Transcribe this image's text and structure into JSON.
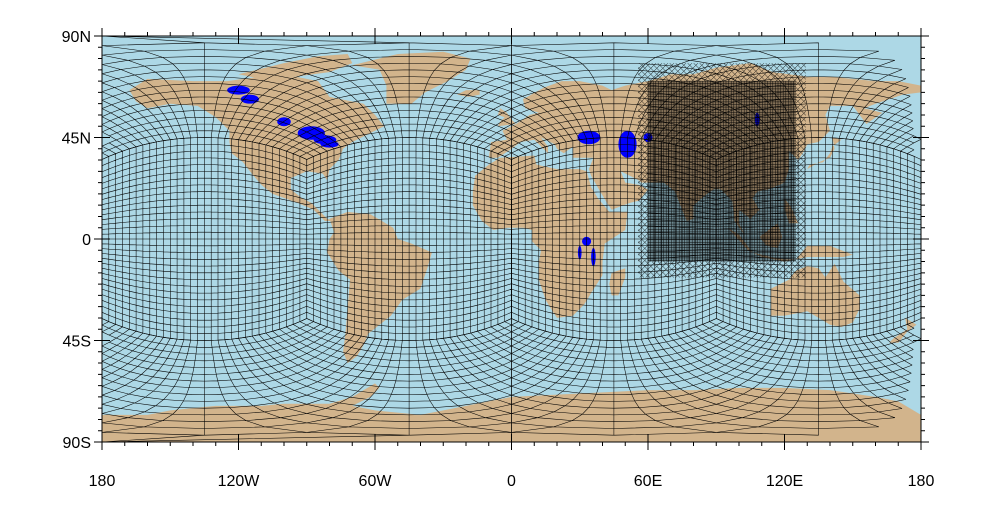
{
  "map": {
    "projection": "cylindrical-equidistant",
    "lon_range": [
      -180,
      180
    ],
    "lat_range": [
      -90,
      90
    ],
    "ocean_color": "#add8e6",
    "land_color": "#d2b48c",
    "lake_color": "#0000ff",
    "grid_color": "#000000",
    "grid_type": "cubed-sphere mesh with regional refinement",
    "refined_region": {
      "lon": [
        60,
        125
      ],
      "lat": [
        -10,
        70
      ]
    }
  },
  "axes": {
    "lon_ticks": [
      {
        "value": -180,
        "label": "180"
      },
      {
        "value": -120,
        "label": "120W"
      },
      {
        "value": -60,
        "label": "60W"
      },
      {
        "value": 0,
        "label": "0"
      },
      {
        "value": 60,
        "label": "60E"
      },
      {
        "value": 120,
        "label": "120E"
      },
      {
        "value": 180,
        "label": "180"
      }
    ],
    "lat_ticks": [
      {
        "value": 90,
        "label": "90N"
      },
      {
        "value": 45,
        "label": "45N"
      },
      {
        "value": 0,
        "label": "0"
      },
      {
        "value": -45,
        "label": "45S"
      },
      {
        "value": -90,
        "label": "90S"
      }
    ]
  }
}
